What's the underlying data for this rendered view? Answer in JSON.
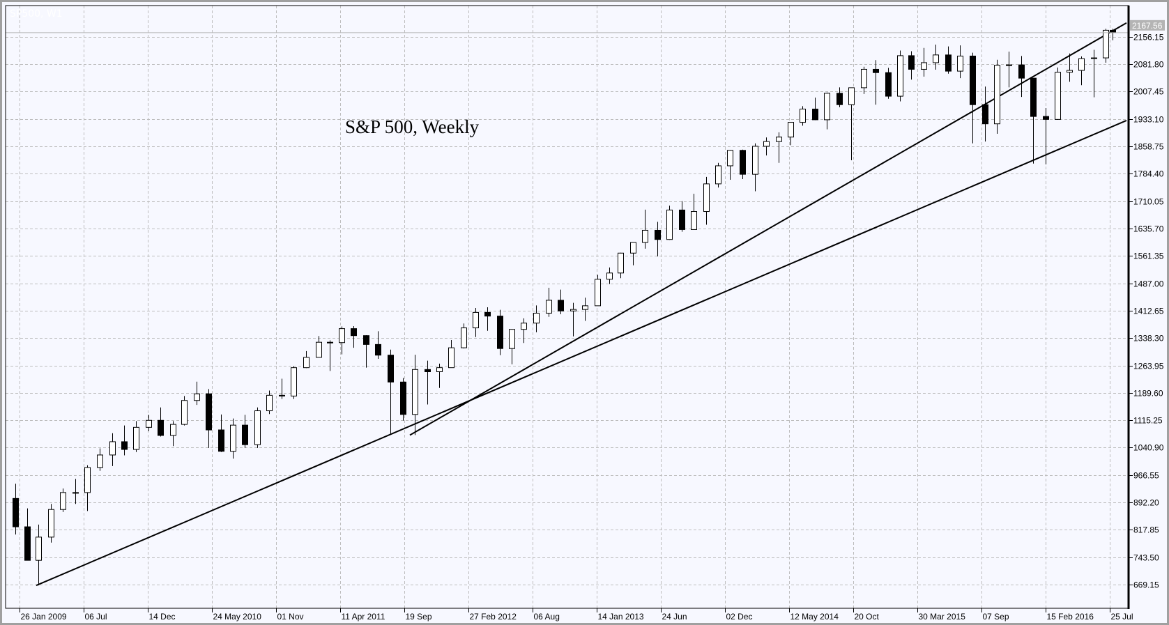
{
  "window": {
    "symbol_label": "SP500, W1"
  },
  "chart_data": {
    "type": "candlestick",
    "title": "S&P 500, Weekly",
    "current_price": "2167.56",
    "ylim": [
      604.8,
      2241
    ],
    "grid": true,
    "colors": {
      "background": "#f7f8ff",
      "bull_fill": "#ffffff",
      "bear_fill": "#000000",
      "grid": "#bdbdbd",
      "trendline": "#000000",
      "price_label_bg": "#b4b4b4"
    },
    "y_ticks": [
      "669.15",
      "743.50",
      "817.85",
      "892.20",
      "966.55",
      "1040.90",
      "1115.25",
      "1189.60",
      "1263.95",
      "1338.30",
      "1412.65",
      "1487.00",
      "1561.35",
      "1635.70",
      "1710.05",
      "1784.40",
      "1858.75",
      "1933.10",
      "2007.45",
      "2081.80",
      "2156.15"
    ],
    "x_ticks": [
      {
        "label": "26 Jan 2009",
        "date": "2009-01-26"
      },
      {
        "label": "06 Jul",
        "date": "2009-07-06"
      },
      {
        "label": "14 Dec",
        "date": "2009-12-14"
      },
      {
        "label": "24 May 2010",
        "date": "2010-05-24"
      },
      {
        "label": "01 Nov",
        "date": "2010-11-01"
      },
      {
        "label": "11 Apr 2011",
        "date": "2011-04-11"
      },
      {
        "label": "19 Sep",
        "date": "2011-09-19"
      },
      {
        "label": "27 Feb 2012",
        "date": "2012-02-27"
      },
      {
        "label": "06 Aug",
        "date": "2012-08-06"
      },
      {
        "label": "14 Jan 2013",
        "date": "2013-01-14"
      },
      {
        "label": "24 Jun",
        "date": "2013-06-24"
      },
      {
        "label": "02 Dec",
        "date": "2013-12-02"
      },
      {
        "label": "12 May 2014",
        "date": "2014-05-12"
      },
      {
        "label": "20 Oct",
        "date": "2014-10-20"
      },
      {
        "label": "30 Mar 2015",
        "date": "2015-03-30"
      },
      {
        "label": "07 Sep",
        "date": "2015-09-07"
      },
      {
        "label": "15 Feb 2016",
        "date": "2016-02-15"
      },
      {
        "label": "25 Jul",
        "date": "2016-07-25"
      }
    ],
    "ohlc_columns": [
      "date",
      "open",
      "high",
      "low",
      "close"
    ],
    "ohlc": [
      [
        "2009-01-15",
        903,
        943,
        805,
        826
      ],
      [
        "2009-02-15",
        826,
        876,
        735,
        735
      ],
      [
        "2009-03-15",
        735,
        832,
        667,
        798
      ],
      [
        "2009-04-15",
        798,
        888,
        783,
        873
      ],
      [
        "2009-05-15",
        873,
        930,
        866,
        919
      ],
      [
        "2009-06-15",
        919,
        956,
        888,
        919
      ],
      [
        "2009-07-15",
        919,
        993,
        869,
        987
      ],
      [
        "2009-08-15",
        987,
        1039,
        978,
        1021
      ],
      [
        "2009-09-15",
        1021,
        1080,
        991,
        1057
      ],
      [
        "2009-10-15",
        1057,
        1101,
        1020,
        1036
      ],
      [
        "2009-11-15",
        1036,
        1113,
        1029,
        1096
      ],
      [
        "2009-12-15",
        1096,
        1130,
        1086,
        1115
      ],
      [
        "2010-01-15",
        1115,
        1150,
        1071,
        1074
      ],
      [
        "2010-02-15",
        1074,
        1113,
        1045,
        1104
      ],
      [
        "2010-03-15",
        1104,
        1181,
        1101,
        1169
      ],
      [
        "2010-04-15",
        1169,
        1220,
        1157,
        1187
      ],
      [
        "2010-05-15",
        1187,
        1200,
        1040,
        1089
      ],
      [
        "2010-06-15",
        1089,
        1131,
        1029,
        1031
      ],
      [
        "2010-07-15",
        1031,
        1120,
        1011,
        1102
      ],
      [
        "2010-08-15",
        1102,
        1130,
        1040,
        1049
      ],
      [
        "2010-09-15",
        1049,
        1150,
        1040,
        1141
      ],
      [
        "2010-10-15",
        1141,
        1196,
        1132,
        1183
      ],
      [
        "2010-11-15",
        1183,
        1228,
        1173,
        1181
      ],
      [
        "2010-12-15",
        1181,
        1262,
        1173,
        1258
      ],
      [
        "2011-01-15",
        1258,
        1303,
        1257,
        1286
      ],
      [
        "2011-02-15",
        1286,
        1344,
        1286,
        1327
      ],
      [
        "2011-03-15",
        1327,
        1332,
        1249,
        1326
      ],
      [
        "2011-04-15",
        1326,
        1370,
        1294,
        1364
      ],
      [
        "2011-05-15",
        1364,
        1371,
        1312,
        1345
      ],
      [
        "2011-06-15",
        1345,
        1346,
        1258,
        1321
      ],
      [
        "2011-07-15",
        1321,
        1357,
        1282,
        1292
      ],
      [
        "2011-08-15",
        1292,
        1307,
        1077,
        1219
      ],
      [
        "2011-09-15",
        1219,
        1230,
        1114,
        1131
      ],
      [
        "2011-10-15",
        1131,
        1293,
        1075,
        1253
      ],
      [
        "2011-11-15",
        1253,
        1277,
        1158,
        1247
      ],
      [
        "2011-12-15",
        1247,
        1269,
        1203,
        1258
      ],
      [
        "2012-01-15",
        1258,
        1333,
        1258,
        1312
      ],
      [
        "2012-02-15",
        1312,
        1378,
        1310,
        1366
      ],
      [
        "2012-03-15",
        1366,
        1420,
        1341,
        1408
      ],
      [
        "2012-04-15",
        1408,
        1422,
        1358,
        1398
      ],
      [
        "2012-05-15",
        1398,
        1415,
        1292,
        1310
      ],
      [
        "2012-06-15",
        1310,
        1363,
        1267,
        1362
      ],
      [
        "2012-07-15",
        1362,
        1392,
        1325,
        1379
      ],
      [
        "2012-08-15",
        1379,
        1427,
        1354,
        1406
      ],
      [
        "2012-09-15",
        1406,
        1475,
        1396,
        1441
      ],
      [
        "2012-10-15",
        1441,
        1470,
        1403,
        1412
      ],
      [
        "2012-11-15",
        1412,
        1434,
        1343,
        1416
      ],
      [
        "2012-12-15",
        1416,
        1448,
        1385,
        1426
      ],
      [
        "2013-01-15",
        1426,
        1510,
        1426,
        1498
      ],
      [
        "2013-02-15",
        1498,
        1530,
        1485,
        1515
      ],
      [
        "2013-03-15",
        1515,
        1570,
        1501,
        1569
      ],
      [
        "2013-04-15",
        1569,
        1598,
        1536,
        1598
      ],
      [
        "2013-05-15",
        1598,
        1687,
        1581,
        1631
      ],
      [
        "2013-06-15",
        1631,
        1654,
        1560,
        1606
      ],
      [
        "2013-07-15",
        1606,
        1698,
        1605,
        1686
      ],
      [
        "2013-08-15",
        1686,
        1710,
        1627,
        1633
      ],
      [
        "2013-09-15",
        1633,
        1730,
        1633,
        1682
      ],
      [
        "2013-10-15",
        1682,
        1776,
        1646,
        1757
      ],
      [
        "2013-11-15",
        1757,
        1814,
        1747,
        1806
      ],
      [
        "2013-12-15",
        1806,
        1849,
        1768,
        1848
      ],
      [
        "2014-01-15",
        1848,
        1850,
        1770,
        1783
      ],
      [
        "2014-02-15",
        1783,
        1867,
        1737,
        1859
      ],
      [
        "2014-03-15",
        1859,
        1883,
        1834,
        1872
      ],
      [
        "2014-04-15",
        1872,
        1897,
        1814,
        1884
      ],
      [
        "2014-05-15",
        1884,
        1924,
        1862,
        1924
      ],
      [
        "2014-06-15",
        1924,
        1968,
        1915,
        1960
      ],
      [
        "2014-07-15",
        1960,
        1991,
        1930,
        1931
      ],
      [
        "2014-08-15",
        1931,
        2005,
        1905,
        2003
      ],
      [
        "2014-09-15",
        2003,
        2019,
        1965,
        1972
      ],
      [
        "2014-10-15",
        1972,
        2018,
        1821,
        2018
      ],
      [
        "2014-11-15",
        2018,
        2075,
        2001,
        2068
      ],
      [
        "2014-12-15",
        2068,
        2093,
        1972,
        2059
      ],
      [
        "2015-01-15",
        2059,
        2072,
        1988,
        1995
      ],
      [
        "2015-02-15",
        1995,
        2119,
        1981,
        2105
      ],
      [
        "2015-03-15",
        2105,
        2117,
        2040,
        2068
      ],
      [
        "2015-04-15",
        2068,
        2126,
        2048,
        2086
      ],
      [
        "2015-05-15",
        2086,
        2135,
        2067,
        2107
      ],
      [
        "2015-06-15",
        2107,
        2130,
        2056,
        2063
      ],
      [
        "2015-07-15",
        2063,
        2133,
        2044,
        2104
      ],
      [
        "2015-08-15",
        2104,
        2113,
        1867,
        1972
      ],
      [
        "2015-09-15",
        1972,
        2021,
        1872,
        1920
      ],
      [
        "2015-10-15",
        1920,
        2094,
        1893,
        2079
      ],
      [
        "2015-11-15",
        2079,
        2116,
        2019,
        2080
      ],
      [
        "2015-12-15",
        2080,
        2104,
        1993,
        2044
      ],
      [
        "2016-01-15",
        2044,
        2044,
        1812,
        1940
      ],
      [
        "2016-02-15",
        1940,
        1963,
        1810,
        1932
      ],
      [
        "2016-03-15",
        1932,
        2073,
        1931,
        2060
      ],
      [
        "2016-04-15",
        2060,
        2111,
        2034,
        2065
      ],
      [
        "2016-05-15",
        2065,
        2103,
        2025,
        2097
      ],
      [
        "2016-06-15",
        2097,
        2121,
        1992,
        2099
      ],
      [
        "2016-07-15",
        2099,
        2178,
        2086,
        2174
      ],
      [
        "2016-08-01",
        2174,
        2178,
        2147,
        2168
      ]
    ],
    "trendlines": [
      {
        "from": [
          "2009-03-09",
          666.8
        ],
        "to": [
          "2016-09-05",
          1929
        ]
      },
      {
        "from": [
          "2011-10-03",
          1074.8
        ],
        "to": [
          "2016-09-05",
          2194
        ]
      }
    ]
  }
}
